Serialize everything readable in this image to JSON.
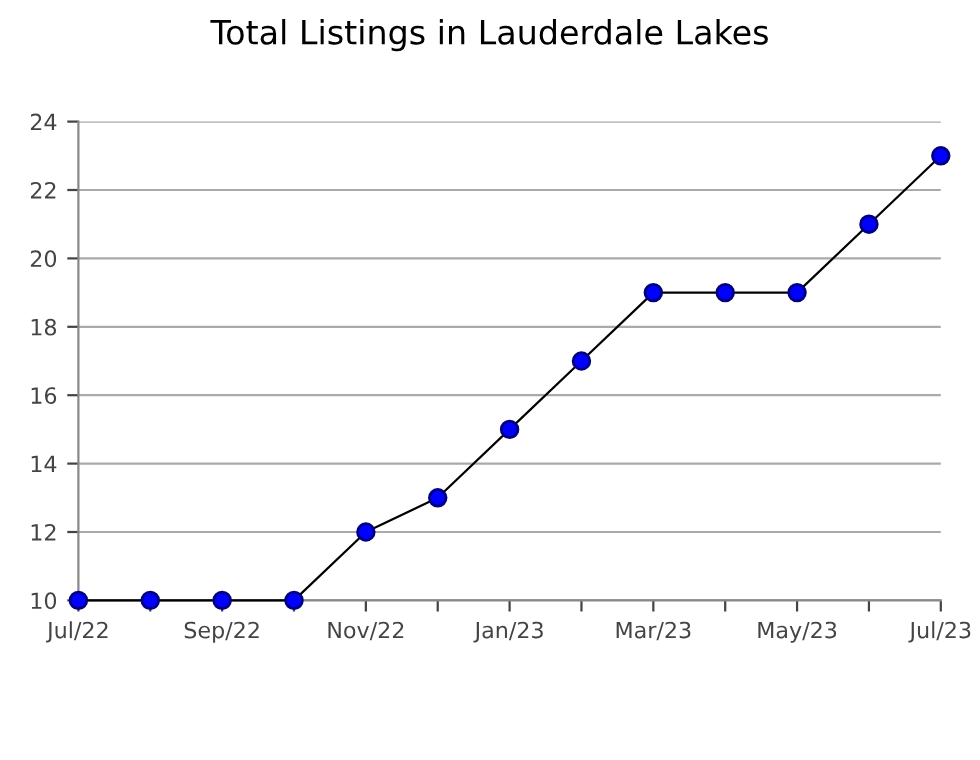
{
  "chart_data": {
    "type": "line",
    "title": "Total Listings in Lauderdale Lakes",
    "categories": [
      "Jul/22",
      null,
      "Sep/22",
      null,
      "Nov/22",
      null,
      "Jan/23",
      null,
      "Mar/23",
      null,
      "May/23",
      null,
      "Jul/23"
    ],
    "series": [
      {
        "color": "#0000ff",
        "values": [
          10,
          10,
          10,
          10,
          12,
          13,
          15,
          17,
          19,
          19,
          19,
          21,
          23
        ]
      }
    ],
    "ylim": [
      10,
      24
    ],
    "yticks": [
      10,
      12,
      14,
      16,
      18,
      20,
      22,
      24
    ],
    "grid": "y",
    "marker": "circle",
    "line_style": "solid",
    "legend": false
  }
}
